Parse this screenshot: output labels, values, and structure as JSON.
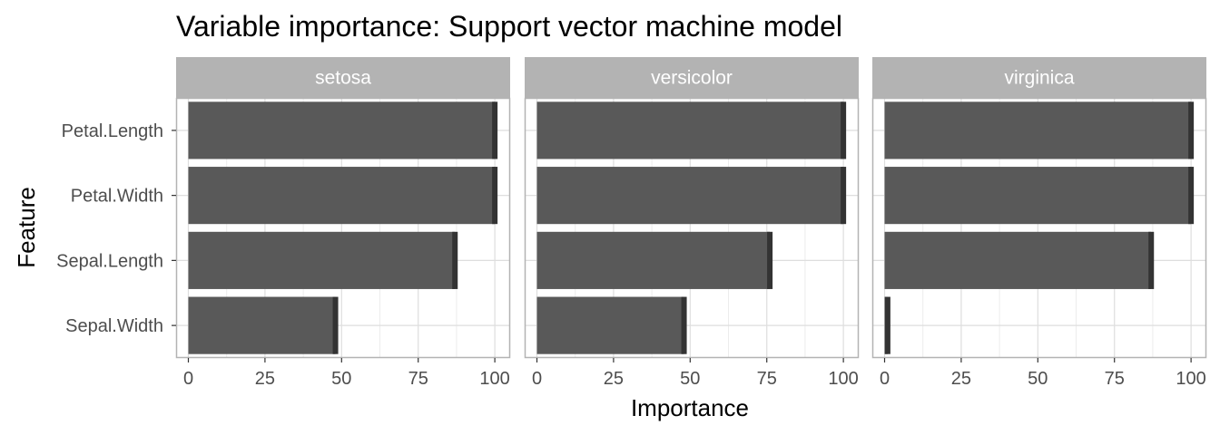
{
  "chart_data": {
    "type": "bar",
    "orientation": "horizontal",
    "title": "Variable importance: Support vector machine model",
    "xlabel": "Importance",
    "ylabel": "Feature",
    "xlim": [
      -4,
      105
    ],
    "xticks": [
      0,
      25,
      50,
      75,
      100
    ],
    "categories": [
      "Petal.Length",
      "Petal.Width",
      "Sepal.Length",
      "Sepal.Width"
    ],
    "grid": true,
    "panels": [
      {
        "name": "setosa",
        "values": [
          100,
          100,
          87,
          48
        ]
      },
      {
        "name": "versicolor",
        "values": [
          100,
          100,
          76,
          48
        ]
      },
      {
        "name": "virginica",
        "values": [
          100,
          100,
          87,
          1
        ]
      }
    ],
    "colors": {
      "bar": "#595959",
      "bar_cap": "#333333",
      "strip_bg": "#b3b3b3",
      "grid": "#dedede",
      "panel_border": "#b3b3b3"
    }
  }
}
